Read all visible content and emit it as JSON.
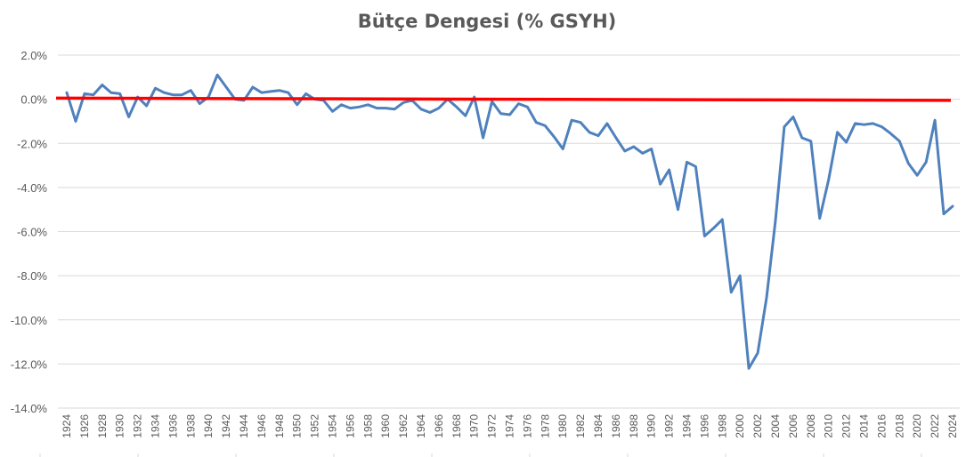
{
  "chart_data": {
    "type": "line",
    "title": "Bütçe Dengesi (% GSYH)",
    "xlabel": "",
    "ylabel": "",
    "ylim": [
      -14,
      2
    ],
    "y_ticks": [
      "2.0%",
      "0.0%",
      "-2.0%",
      "-4.0%",
      "-6.0%",
      "-8.0%",
      "-10.0%",
      "-12.0%",
      "-14.0%"
    ],
    "y_tick_values": [
      2,
      0,
      -2,
      -4,
      -6,
      -8,
      -10,
      -12,
      -14
    ],
    "x_tick_labels": [
      "1924",
      "1926",
      "1928",
      "1930",
      "1932",
      "1934",
      "1936",
      "1938",
      "1940",
      "1942",
      "1944",
      "1946",
      "1948",
      "1950",
      "1952",
      "1954",
      "1956",
      "1958",
      "1960",
      "1962",
      "1964",
      "1966",
      "1968",
      "1970",
      "1972",
      "1974",
      "1976",
      "1978",
      "1980",
      "1982",
      "1984",
      "1986",
      "1988",
      "1990",
      "1992",
      "1994",
      "1996",
      "1998",
      "2000",
      "2002",
      "2004",
      "2006",
      "2008",
      "2010",
      "2012",
      "2014",
      "2016",
      "2018",
      "2020",
      "2022",
      "2024"
    ],
    "grid": true,
    "legend": "none",
    "colors": {
      "series": "#4f81bd",
      "reference": "#ff0000",
      "grid": "#d9d9d9",
      "text": "#595959"
    },
    "series": [
      {
        "x": [
          1924,
          1925,
          1926,
          1927,
          1928,
          1929,
          1930,
          1931,
          1932,
          1933,
          1934,
          1935,
          1936,
          1937,
          1938,
          1939,
          1940,
          1941,
          1942,
          1943,
          1944,
          1945,
          1946,
          1947,
          1948,
          1949,
          1950,
          1951,
          1952,
          1953,
          1954,
          1955,
          1956,
          1957,
          1958,
          1959,
          1960,
          1961,
          1962,
          1963,
          1964,
          1965,
          1966,
          1967,
          1968,
          1969,
          1970,
          1971,
          1972,
          1973,
          1974,
          1975,
          1976,
          1977,
          1978,
          1979,
          1980,
          1981,
          1982,
          1983,
          1984,
          1985,
          1986,
          1987,
          1988,
          1989,
          1990,
          1991,
          1992,
          1993,
          1994,
          1995,
          1996,
          1997,
          1998,
          1999,
          2000,
          2001,
          2002,
          2003,
          2004,
          2005,
          2006,
          2007,
          2008,
          2009,
          2010,
          2011,
          2012,
          2013,
          2014,
          2015,
          2016,
          2017,
          2018,
          2019,
          2020,
          2021,
          2022,
          2023,
          2024
        ],
        "values": [
          0.3,
          -1.0,
          0.25,
          0.2,
          0.65,
          0.3,
          0.25,
          -0.8,
          0.1,
          -0.3,
          0.5,
          0.3,
          0.2,
          0.2,
          0.4,
          -0.2,
          0.1,
          1.1,
          0.55,
          0.0,
          -0.05,
          0.55,
          0.3,
          0.35,
          0.4,
          0.3,
          -0.25,
          0.25,
          0.0,
          -0.05,
          -0.55,
          -0.25,
          -0.4,
          -0.35,
          -0.25,
          -0.4,
          -0.4,
          -0.45,
          -0.15,
          -0.05,
          -0.45,
          -0.6,
          -0.4,
          0.0,
          -0.35,
          -0.75,
          0.1,
          -1.75,
          -0.1,
          -0.65,
          -0.7,
          -0.2,
          -0.35,
          -1.05,
          -1.2,
          -1.7,
          -2.25,
          -0.95,
          -1.05,
          -1.5,
          -1.65,
          -1.1,
          -1.75,
          -2.35,
          -2.15,
          -2.45,
          -2.25,
          -3.85,
          -3.2,
          -5.0,
          -2.85,
          -3.05,
          -6.2,
          -5.85,
          -5.45,
          -8.75,
          -8.0,
          -12.2,
          -11.5,
          -9.0,
          -5.5,
          -1.25,
          -0.8,
          -1.75,
          -1.9,
          -5.4,
          -3.65,
          -1.5,
          -1.95,
          -1.1,
          -1.15,
          -1.1,
          -1.25,
          -1.55,
          -1.9,
          -2.9,
          -3.45,
          -2.85,
          -0.95,
          -5.2,
          -4.85
        ]
      },
      {
        "x": [
          1924,
          2024
        ],
        "values": [
          0.05,
          -0.05
        ]
      }
    ]
  }
}
